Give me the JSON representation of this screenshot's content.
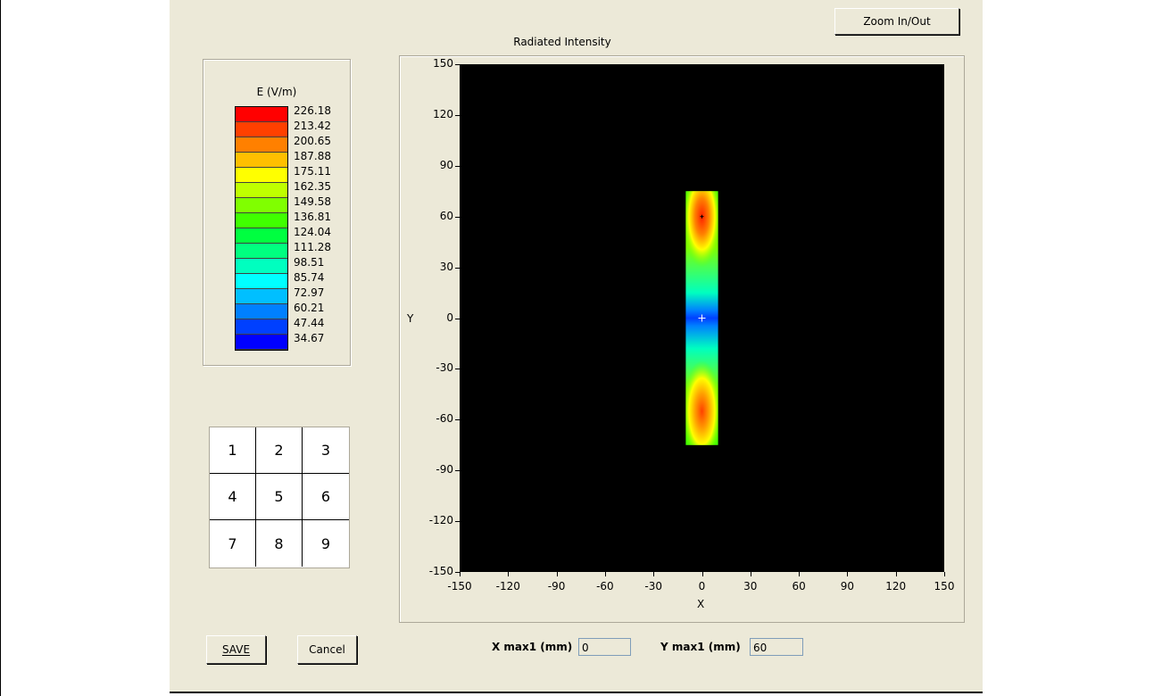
{
  "plot": {
    "title": "Radiated Intensity",
    "x_label": "X",
    "y_label": "Y"
  },
  "buttons": {
    "zoom_label": "Zoom In/Out",
    "save_label": "SAVE",
    "cancel_label": "Cancel"
  },
  "legend": {
    "title": "E (V/m)",
    "entries": [
      {
        "value": "226.18",
        "color": "#ff0000"
      },
      {
        "value": "213.42",
        "color": "#ff4000"
      },
      {
        "value": "200.65",
        "color": "#ff8000"
      },
      {
        "value": "187.88",
        "color": "#ffbf00"
      },
      {
        "value": "175.11",
        "color": "#ffff00"
      },
      {
        "value": "162.35",
        "color": "#bfff00"
      },
      {
        "value": "149.58",
        "color": "#80ff00"
      },
      {
        "value": "136.81",
        "color": "#40ff00"
      },
      {
        "value": "124.04",
        "color": "#00ff40"
      },
      {
        "value": "111.28",
        "color": "#00ff80"
      },
      {
        "value": "98.51",
        "color": "#00ffbf"
      },
      {
        "value": "85.74",
        "color": "#00ffff"
      },
      {
        "value": "72.97",
        "color": "#00bfff"
      },
      {
        "value": "60.21",
        "color": "#0080ff"
      },
      {
        "value": "47.44",
        "color": "#0040ff"
      },
      {
        "value": "34.67",
        "color": "#0000ff"
      }
    ]
  },
  "keypad": [
    "1",
    "2",
    "3",
    "4",
    "5",
    "6",
    "7",
    "8",
    "9"
  ],
  "readouts": {
    "x_max_label": "X max1 (mm)",
    "x_max_value": "0",
    "y_max_label": "Y max1 (mm)",
    "y_max_value": "60"
  },
  "chart_data": {
    "type": "heatmap",
    "title": "Radiated Intensity",
    "xlabel": "X",
    "ylabel": "Y",
    "xlim": [
      -150,
      150
    ],
    "ylim": [
      -150,
      150
    ],
    "x_ticks": [
      "-150",
      "-120",
      "-90",
      "-60",
      "-30",
      "0",
      "30",
      "60",
      "90",
      "120",
      "150"
    ],
    "y_ticks": [
      "150",
      "120",
      "90",
      "60",
      "30",
      "0",
      "-30",
      "-60",
      "-90",
      "-120",
      "-150"
    ],
    "field_region": {
      "x": [
        -10,
        10
      ],
      "y": [
        -75,
        75
      ]
    },
    "peaks": [
      {
        "x": 0,
        "y": 60,
        "value": 226.18
      },
      {
        "x": 0,
        "y": -55,
        "value": 213.42
      }
    ],
    "center_min": {
      "x": 0,
      "y": 0,
      "value": 34.67
    },
    "background_color": "#000000"
  }
}
